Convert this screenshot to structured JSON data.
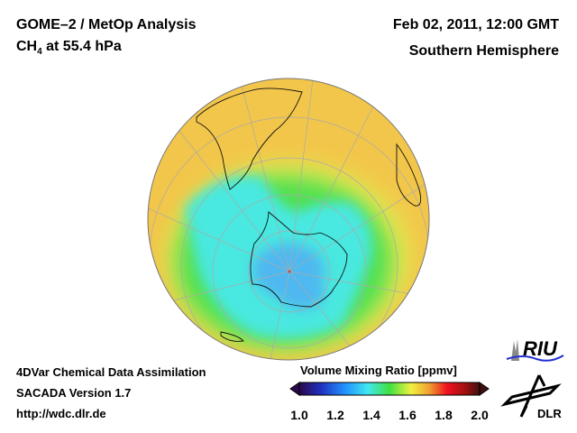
{
  "header": {
    "title": "GOME–2 / MetOp Analysis",
    "species": "CH",
    "species_sub": "4",
    "level": " at 55.4 hPa",
    "datetime": "Feb 02, 2011, 12:00 GMT",
    "region": "Southern Hemisphere"
  },
  "footer": {
    "line1": "4DVar Chemical Data Assimilation",
    "line2": "SACADA Version 1.7",
    "line3": "http://wdc.dlr.de"
  },
  "colorbar": {
    "title": "Volume Mixing Ratio [ppmv]",
    "ticks": [
      "1.0",
      "1.2",
      "1.4",
      "1.6",
      "1.8",
      "2.0"
    ],
    "range": [
      1.0,
      2.0
    ],
    "colors": [
      "#2a0a4a",
      "#2030c0",
      "#2090ff",
      "#40e8f0",
      "#40e040",
      "#f0f040",
      "#f0a030",
      "#f01020",
      "#a01010",
      "#401010"
    ]
  },
  "logos": {
    "riu": "RIU",
    "dlr": "DLR"
  }
}
